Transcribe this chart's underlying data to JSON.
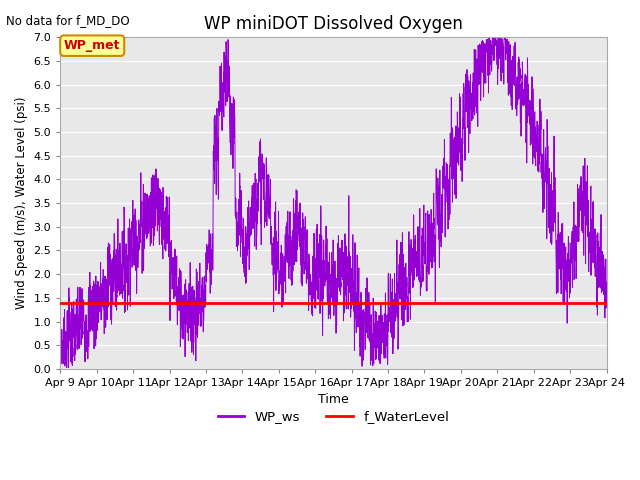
{
  "title": "WP miniDOT Dissolved Oxygen",
  "top_left_text": "No data for f_MD_DO",
  "ylabel": "Wind Speed (m/s), Water Level (psi)",
  "xlabel": "Time",
  "ylim": [
    0.0,
    7.0
  ],
  "yticks": [
    0.0,
    0.5,
    1.0,
    1.5,
    2.0,
    2.5,
    3.0,
    3.5,
    4.0,
    4.5,
    5.0,
    5.5,
    6.0,
    6.5,
    7.0
  ],
  "water_level_value": 1.4,
  "water_level_color": "#ff0000",
  "wind_color": "#9400D3",
  "background_color": "#e8e8e8",
  "legend_items": [
    "WP_ws",
    "f_WaterLevel"
  ],
  "legend_colors": [
    "#9400D3",
    "#ff0000"
  ],
  "annotation_box_text": "WP_met",
  "annotation_box_color": "#ffff99",
  "annotation_box_edge_color": "#cc8800",
  "annotation_text_color": "#cc0000",
  "x_start_days": 9,
  "x_end_days": 24,
  "x_tick_labels": [
    "Apr 9",
    "Apr 10",
    "Apr 11",
    "Apr 12",
    "Apr 13",
    "Apr 14",
    "Apr 15",
    "Apr 16",
    "Apr 17",
    "Apr 18",
    "Apr 19",
    "Apr 20",
    "Apr 21",
    "Apr 22",
    "Apr 23",
    "Apr 24"
  ],
  "x_tick_positions": [
    9,
    10,
    11,
    12,
    13,
    14,
    15,
    16,
    17,
    18,
    19,
    20,
    21,
    22,
    23,
    24
  ],
  "figwidth": 6.4,
  "figheight": 4.8,
  "dpi": 100
}
